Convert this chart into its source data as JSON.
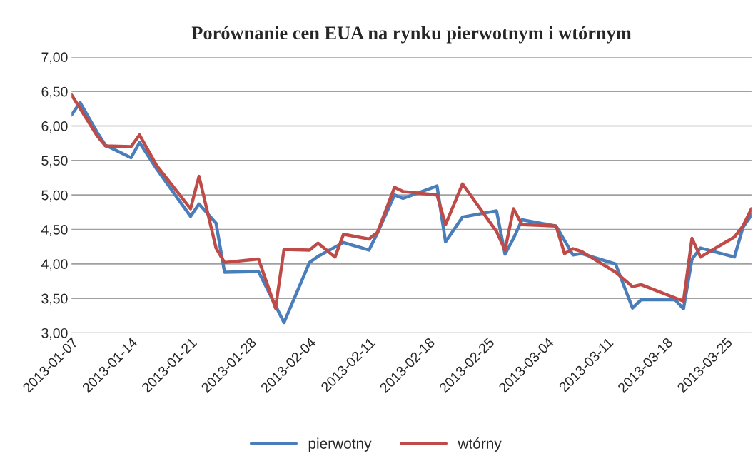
{
  "chart_data": {
    "type": "line",
    "title": "Porównanie cen EUA na rynku pierwotnym i wtórnym",
    "series": [
      {
        "name": "pierwotny",
        "color": "#4a7ebb",
        "x": [
          "2013-01-07",
          "2013-01-08",
          "2013-01-10",
          "2013-01-11",
          "2013-01-14",
          "2013-01-15",
          "2013-01-17",
          "2013-01-21",
          "2013-01-22",
          "2013-01-24",
          "2013-01-25",
          "2013-01-29",
          "2013-02-01",
          "2013-02-04",
          "2013-02-05",
          "2013-02-08",
          "2013-02-11",
          "2013-02-12",
          "2013-02-14",
          "2013-02-15",
          "2013-02-19",
          "2013-02-20",
          "2013-02-22",
          "2013-02-26",
          "2013-02-27",
          "2013-02-28",
          "2013-03-01",
          "2013-03-05",
          "2013-03-07",
          "2013-03-08",
          "2013-03-12",
          "2013-03-14",
          "2013-03-15",
          "2013-03-19",
          "2013-03-20",
          "2013-03-21",
          "2013-03-22",
          "2013-03-26",
          "2013-03-27",
          "2013-03-28"
        ],
        "values": [
          6.16,
          6.34,
          5.91,
          5.72,
          5.54,
          5.76,
          5.38,
          4.69,
          4.87,
          4.59,
          3.88,
          3.89,
          3.15,
          4.02,
          4.11,
          4.31,
          4.2,
          4.45,
          5.0,
          4.95,
          5.13,
          4.32,
          4.68,
          4.77,
          4.14,
          4.37,
          4.64,
          4.55,
          4.13,
          4.15,
          4.0,
          3.36,
          3.48,
          3.48,
          3.35,
          4.07,
          4.23,
          4.1,
          4.53,
          4.71
        ]
      },
      {
        "name": "wtórny",
        "color": "#be4b48",
        "x": [
          "2013-01-07",
          "2013-01-10",
          "2013-01-11",
          "2013-01-14",
          "2013-01-15",
          "2013-01-17",
          "2013-01-21",
          "2013-01-22",
          "2013-01-24",
          "2013-01-25",
          "2013-01-29",
          "2013-01-31",
          "2013-02-01",
          "2013-02-04",
          "2013-02-05",
          "2013-02-07",
          "2013-02-08",
          "2013-02-11",
          "2013-02-12",
          "2013-02-14",
          "2013-02-15",
          "2013-02-19",
          "2013-02-20",
          "2013-02-22",
          "2013-02-26",
          "2013-02-27",
          "2013-02-28",
          "2013-03-01",
          "2013-03-05",
          "2013-03-06",
          "2013-03-07",
          "2013-03-08",
          "2013-03-12",
          "2013-03-14",
          "2013-03-15",
          "2013-03-20",
          "2013-03-21",
          "2013-03-22",
          "2013-03-26",
          "2013-03-27",
          "2013-03-28"
        ],
        "values": [
          6.45,
          5.86,
          5.71,
          5.7,
          5.87,
          5.43,
          4.8,
          5.27,
          4.23,
          4.02,
          4.07,
          3.36,
          4.21,
          4.2,
          4.3,
          4.1,
          4.43,
          4.36,
          4.46,
          5.11,
          5.05,
          5.0,
          4.57,
          5.16,
          4.47,
          4.2,
          4.8,
          4.57,
          4.55,
          4.15,
          4.22,
          4.18,
          3.88,
          3.67,
          3.7,
          3.46,
          4.37,
          4.1,
          4.39,
          4.55,
          4.8
        ]
      }
    ],
    "xlim": [
      "2013-01-07",
      "2013-03-28"
    ],
    "xticks": [
      "2013-01-07",
      "2013-01-14",
      "2013-01-21",
      "2013-01-28",
      "2013-02-04",
      "2013-02-11",
      "2013-02-18",
      "2013-02-25",
      "2013-03-04",
      "2013-03-11",
      "2013-03-18",
      "2013-03-25"
    ],
    "ylim": [
      3,
      7
    ],
    "yticks": [
      {
        "value": 3,
        "label": "3,00"
      },
      {
        "value": 3.5,
        "label": "3,50"
      },
      {
        "value": 4,
        "label": "4,00"
      },
      {
        "value": 4.5,
        "label": "4,50"
      },
      {
        "value": 5,
        "label": "5,00"
      },
      {
        "value": 5.5,
        "label": "5,50"
      },
      {
        "value": 6,
        "label": "6,00"
      },
      {
        "value": 6.5,
        "label": "6,50"
      },
      {
        "value": 7,
        "label": "7,00"
      }
    ],
    "grid": "y",
    "legend": "bottom",
    "marker": "none",
    "line_style": "solid"
  }
}
